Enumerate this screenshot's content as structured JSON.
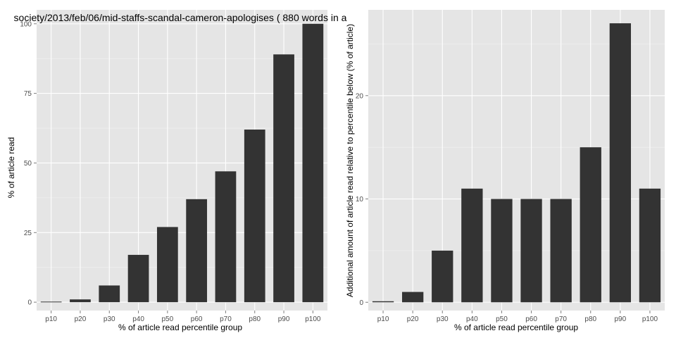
{
  "colors": {
    "panel_background": "#e5e5e5",
    "grid_major": "#ffffff",
    "grid_minor": "#f2f2f2",
    "bar_fill": "#333333"
  },
  "chart_data": [
    {
      "type": "bar",
      "title": "society/2013/feb/06/mid-staffs-scandal-cameron-apologises ( 880 words in a",
      "xlabel": "% of article read percentile group",
      "ylabel": "% of article read",
      "categories": [
        "p10",
        "p20",
        "p30",
        "p40",
        "p50",
        "p60",
        "p70",
        "p80",
        "p90",
        "p100"
      ],
      "values": [
        0.2,
        1,
        6,
        17,
        27,
        37,
        47,
        62,
        89,
        100
      ],
      "ylim": [
        -3,
        105
      ],
      "yticks": [
        0,
        25,
        50,
        75,
        100
      ],
      "ytick_labels": [
        "0",
        "25",
        "50",
        "75",
        "100"
      ],
      "grid": true,
      "legend": "none"
    },
    {
      "type": "bar",
      "title": "",
      "xlabel": "% of article read percentile group",
      "ylabel": "Additional amount of article read relative to percentile below (% of article)",
      "categories": [
        "p10",
        "p20",
        "p30",
        "p40",
        "p50",
        "p60",
        "p70",
        "p80",
        "p90",
        "p100"
      ],
      "values": [
        0.1,
        1,
        5,
        11,
        10,
        10,
        10,
        15,
        27,
        11
      ],
      "ylim": [
        -0.8,
        28.3
      ],
      "yticks": [
        0,
        10,
        20
      ],
      "ytick_labels": [
        "0",
        "10",
        "20"
      ],
      "grid": true,
      "legend": "none"
    }
  ]
}
